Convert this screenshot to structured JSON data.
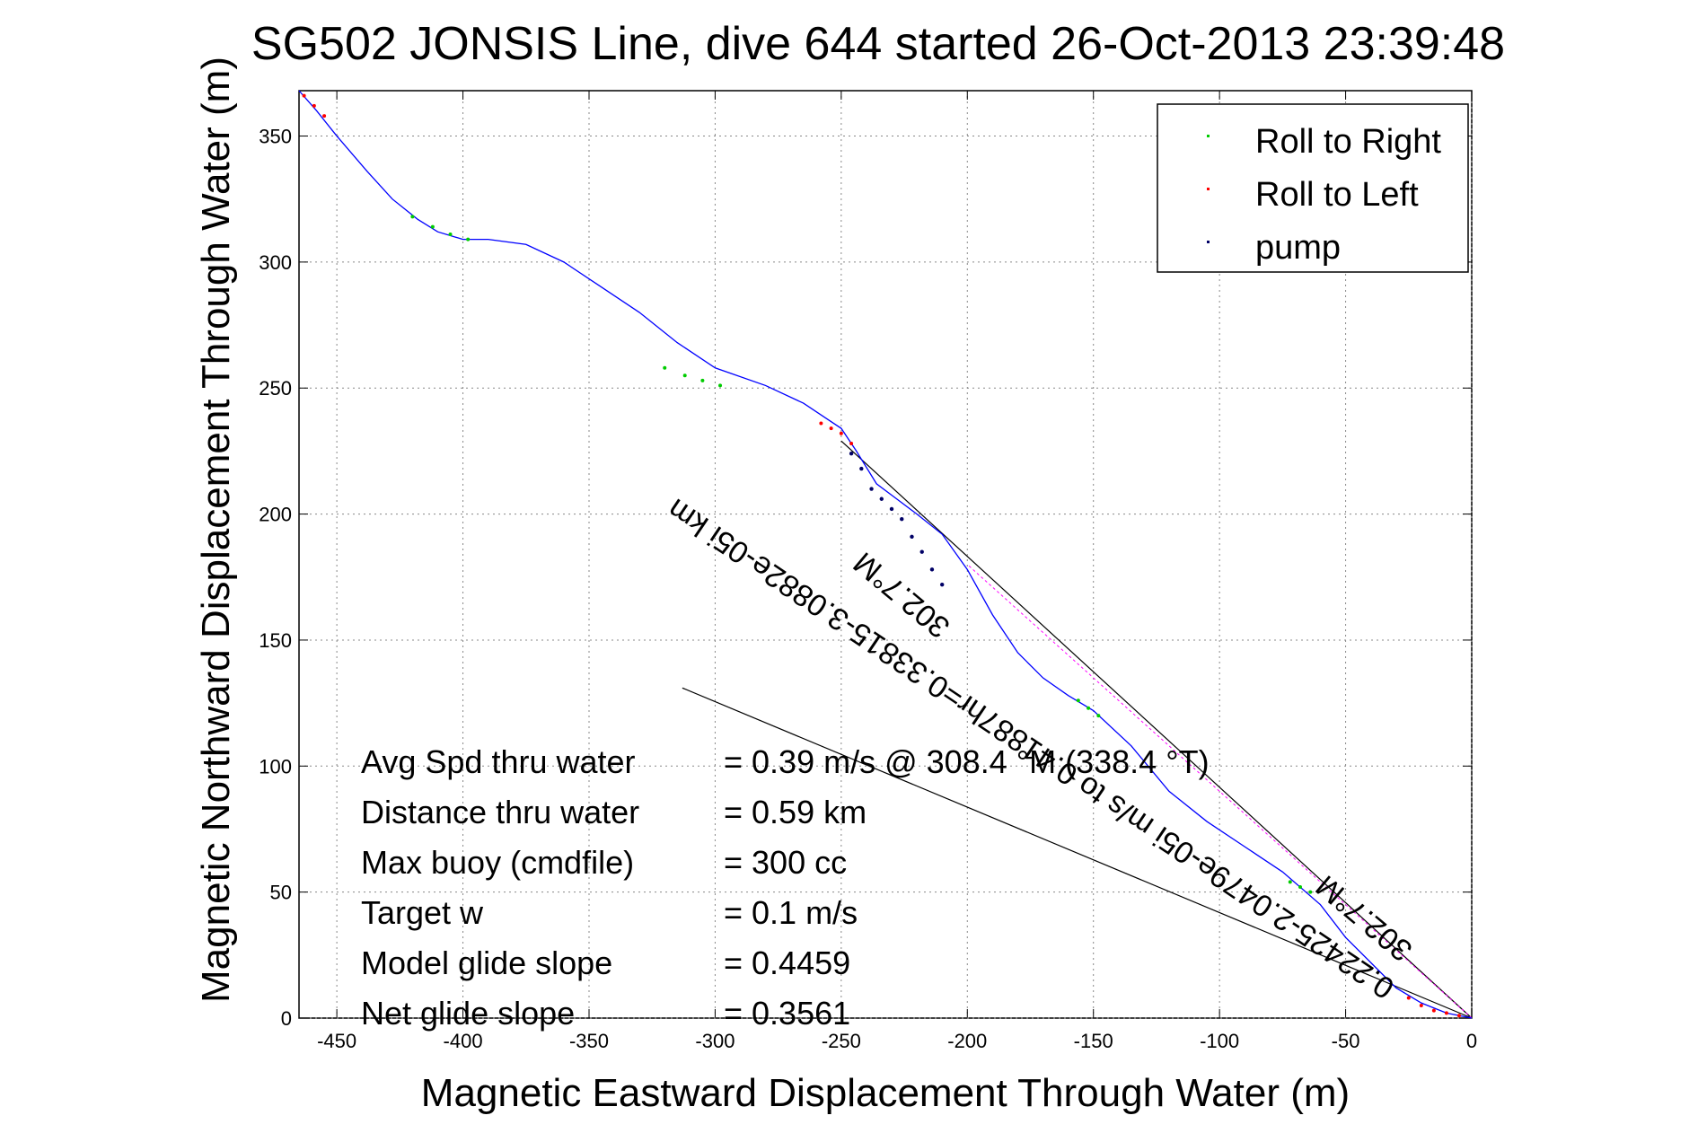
{
  "chart_data": {
    "type": "line",
    "title": "SG502 JONSIS Line, dive 644 started 26-Oct-2013 23:39:48",
    "xlabel": "Magnetic Eastward Displacement Through Water (m)",
    "ylabel": "Magnetic Northward Displacement Through Water (m)",
    "xlim": [
      -465,
      0
    ],
    "ylim": [
      0,
      368
    ],
    "xticks": [
      -450,
      -400,
      -350,
      -300,
      -250,
      -200,
      -150,
      -100,
      -50,
      0
    ],
    "yticks": [
      0,
      50,
      100,
      150,
      200,
      250,
      300,
      350
    ],
    "grid": true,
    "legend_position": "top-right",
    "colors": {
      "track": "#0000ff",
      "roll_right": "#00cc00",
      "roll_left": "#ff0000",
      "pump": "#000066",
      "reference": "#000000",
      "current": "#ff00ff"
    },
    "legend": [
      {
        "label": "Roll to Right",
        "color": "#00cc00"
      },
      {
        "label": "Roll to Left",
        "color": "#ff0000"
      },
      {
        "label": "pump",
        "color": "#000066"
      }
    ],
    "track": {
      "x": [
        0,
        -10,
        -20,
        -30,
        -40,
        -50,
        -60,
        -75,
        -90,
        -105,
        -120,
        -135,
        -150,
        -160,
        -170,
        -180,
        -190,
        -200,
        -210,
        -220,
        -228,
        -236,
        -244,
        -250,
        -256,
        -265,
        -280,
        -300,
        -315,
        -330,
        -345,
        -360,
        -375,
        -390,
        -400,
        -410,
        -418,
        -428,
        -438,
        -450,
        -458,
        -465
      ],
      "y": [
        0,
        2,
        6,
        12,
        22,
        32,
        45,
        58,
        68,
        78,
        90,
        108,
        122,
        128,
        135,
        145,
        160,
        178,
        192,
        200,
        206,
        212,
        225,
        234,
        238,
        244,
        251,
        258,
        268,
        280,
        290,
        300,
        307,
        309,
        309,
        312,
        317,
        325,
        336,
        350,
        360,
        368
      ]
    },
    "roll_right": {
      "x": [
        -420,
        -412,
        -405,
        -398,
        -320,
        -312,
        -305,
        -298,
        -156,
        -152,
        -148,
        -72,
        -68,
        -64
      ],
      "y": [
        318,
        314,
        311,
        309,
        258,
        255,
        253,
        251,
        126,
        123,
        120,
        54,
        52,
        50
      ]
    },
    "roll_left": {
      "x": [
        -463,
        -459,
        -455,
        -258,
        -254,
        -250,
        -246,
        -5,
        -10,
        -15,
        -20,
        -25
      ],
      "y": [
        366,
        362,
        358,
        236,
        234,
        232,
        228,
        1,
        2,
        3,
        5,
        8
      ]
    },
    "pump": {
      "x": [
        -246,
        -242,
        -238,
        -234,
        -230,
        -226,
        -222,
        -218,
        -214,
        -210
      ],
      "y": [
        224,
        218,
        210,
        206,
        202,
        198,
        191,
        185,
        178,
        172
      ]
    },
    "reference_lines": [
      {
        "x": [
          0,
          -250
        ],
        "y": [
          0,
          229
        ]
      },
      {
        "x": [
          0,
          -313
        ],
        "y": [
          0,
          131
        ]
      }
    ],
    "current_line": {
      "x": [
        0,
        -200
      ],
      "y": [
        0,
        180
      ]
    },
    "annotations": {
      "course_label_1": "302.7°M",
      "course_label_2": "302.7°M",
      "current_label": "0.22425-2.0479e-05i m/s to 0.41887hr=0.33815-3.0882e-05i km"
    },
    "stats": [
      {
        "label": "Avg Spd thru water",
        "value": "=  0.39 m/s @ 308.4 °M (338.4 °T)"
      },
      {
        "label": "Distance thru water",
        "value": "=  0.59 km"
      },
      {
        "label": "Max buoy (cmdfile)",
        "value": "= 300 cc"
      },
      {
        "label": "Target w",
        "value": "= 0.1 m/s"
      },
      {
        "label": "Model glide slope",
        "value": "= 0.4459"
      },
      {
        "label": "Net glide slope",
        "value": "= 0.3561"
      }
    ]
  }
}
